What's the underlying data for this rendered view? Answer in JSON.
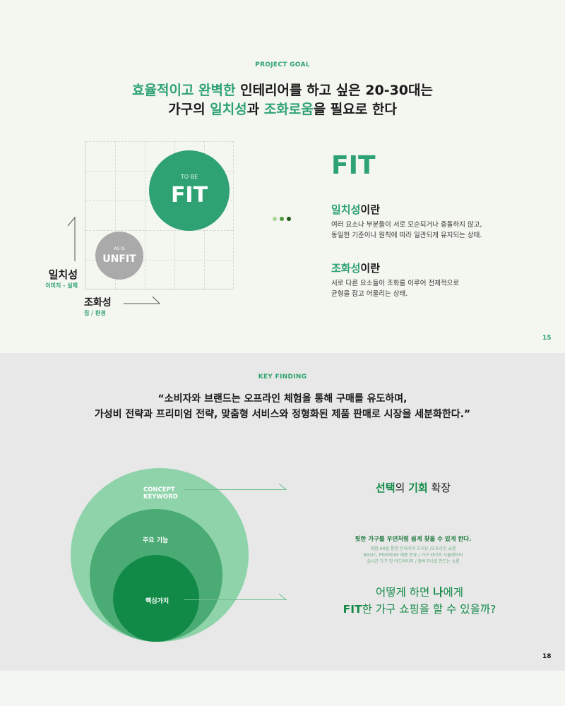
{
  "slide1": {
    "eyebrow": "PROJECT GOAL",
    "title_line1": {
      "g": "효율적이고 완벽한",
      "rest": " 인테리어를 하고 싶은 20-30대는"
    },
    "title_line2": {
      "a": "가구의 ",
      "g1": "일치성",
      "b": "과 ",
      "g2": "조화로움",
      "c": "을 필요로 한다"
    },
    "fit_circle": {
      "small": "TO BE",
      "big": "FIT"
    },
    "unfit_circle": {
      "small": "AS IS",
      "big": "UNFIT"
    },
    "y_axis": {
      "label": "일치성",
      "sub": "이미지 - 실제"
    },
    "x_axis": {
      "label": "조화성",
      "sub": "집 / 환경"
    },
    "fit_heading": "FIT",
    "def1": {
      "g": "일치성",
      "rest": "이란",
      "line1": "여러 요소나 부분들이 서로 모순되거나 충돌하지 않고,",
      "line2": "동일한 기준이나 원칙에 따라 일관되게 유지되는 상태."
    },
    "def2": {
      "g": "조화성",
      "rest": "이란",
      "line1": "서로 다른 요소들이 조화를 이루어 전체적으로",
      "line2": "균형을 잡고 어울리는 상태."
    },
    "page": "15",
    "dot_colors": [
      "#a9d89a",
      "#4f9a3e",
      "#1e5a1e"
    ]
  },
  "slide2": {
    "eyebrow": "KEY FINDING",
    "quote_line1": "“소비자와 브랜드는 오프라인 체험을 통해 구매를 유도하며,",
    "quote_line2": "가성비 전략과 프리미엄 전략, 맞춤형 서비스와 정형화된 제품 판매로 시장을 세분화한다.”",
    "circles": {
      "outer": "CONCEPT\nKEYWORD",
      "middle": "주요 기능",
      "inner": "핵심가치"
    },
    "right1": {
      "a": "선택",
      "b": "의 ",
      "c": "기회",
      "d": " 확장"
    },
    "right2": {
      "lead": "핏한 가구를 우연처럼 쉽게 찾을 수 있게 한다.",
      "l1": "체험 AR을 통한 인테리어 프리뷰 /오프라인 쇼룸",
      "l2": "BASIC, PREMIUM 제품 분류 / 가구 라이프 시뮬레이터",
      "l3": "실시간 가구 핏 어드바이저 / 장바구니로 만드는 쇼룸"
    },
    "right3": {
      "l1a": "어떻게 하면 ",
      "l1b": "나",
      "l1c": "에게",
      "l2a": "FIT",
      "l2b": "한 가구 쇼핑을 할 수 있을까?"
    },
    "page": "18"
  },
  "colors": {
    "accent": "#2ea273",
    "dark_green": "#128a47",
    "light_green": "#8fd3ab",
    "mid_green": "#4bab74"
  }
}
